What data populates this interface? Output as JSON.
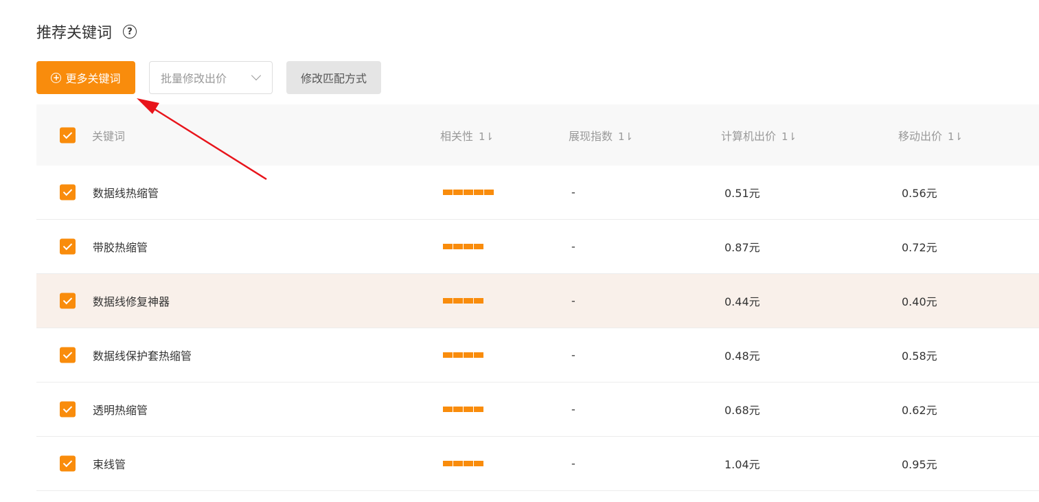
{
  "title": "推荐关键词",
  "toolbar": {
    "more_label": "更多关键词",
    "batch_bid_placeholder": "批量修改出价",
    "match_label": "修改匹配方式"
  },
  "table": {
    "headers": {
      "keyword": "关键词",
      "relevance": "相关性",
      "impression": "展现指数",
      "pc_bid": "计算机出价",
      "mobile_bid": "移动出价"
    },
    "sort_glyph": "1⇂",
    "rows": [
      {
        "keyword": "数据线热缩管",
        "relevance": 5,
        "impression": "-",
        "pc_bid": "0.51元",
        "mobile_bid": "0.56元",
        "checked": true
      },
      {
        "keyword": "带胶热缩管",
        "relevance": 4,
        "impression": "-",
        "pc_bid": "0.87元",
        "mobile_bid": "0.72元",
        "checked": true
      },
      {
        "keyword": "数据线修复神器",
        "relevance": 4,
        "impression": "-",
        "pc_bid": "0.44元",
        "mobile_bid": "0.40元",
        "checked": true,
        "highlighted": true
      },
      {
        "keyword": "数据线保护套热缩管",
        "relevance": 4,
        "impression": "-",
        "pc_bid": "0.48元",
        "mobile_bid": "0.58元",
        "checked": true
      },
      {
        "keyword": "透明热缩管",
        "relevance": 4,
        "impression": "-",
        "pc_bid": "0.68元",
        "mobile_bid": "0.62元",
        "checked": true
      },
      {
        "keyword": "束线管",
        "relevance": 4,
        "impression": "-",
        "pc_bid": "1.04元",
        "mobile_bid": "0.95元",
        "checked": true
      }
    ]
  },
  "colors": {
    "accent": "#f98c0c",
    "annotation_arrow": "#e8141b",
    "highlight_row": "#f9f0ea"
  }
}
